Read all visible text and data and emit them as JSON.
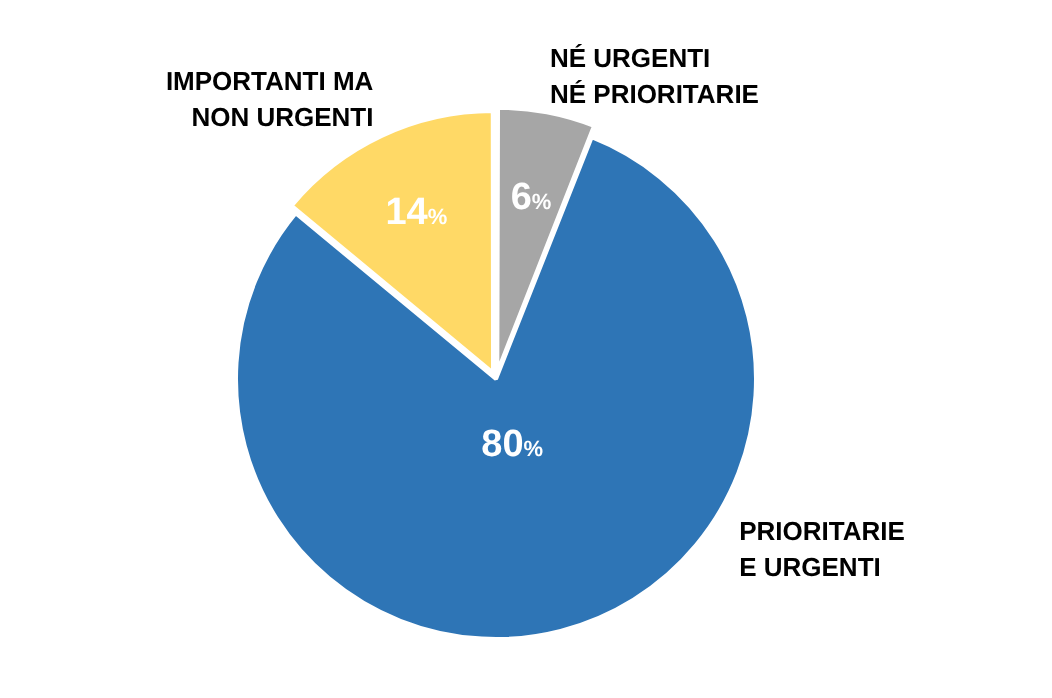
{
  "chart_data": {
    "type": "pie",
    "categories": [
      "NÉ URGENTI\nNÉ PRIORITARIE",
      "PRIORITARIE\nE URGENTI",
      "IMPORTANTI MA\nNON URGENTI"
    ],
    "values": [
      6,
      80,
      14
    ],
    "colors": [
      "#a6a6a6",
      "#2e75b6",
      "#ffd966"
    ],
    "value_labels": [
      "6%",
      "80%",
      "14%"
    ],
    "legend": false
  }
}
